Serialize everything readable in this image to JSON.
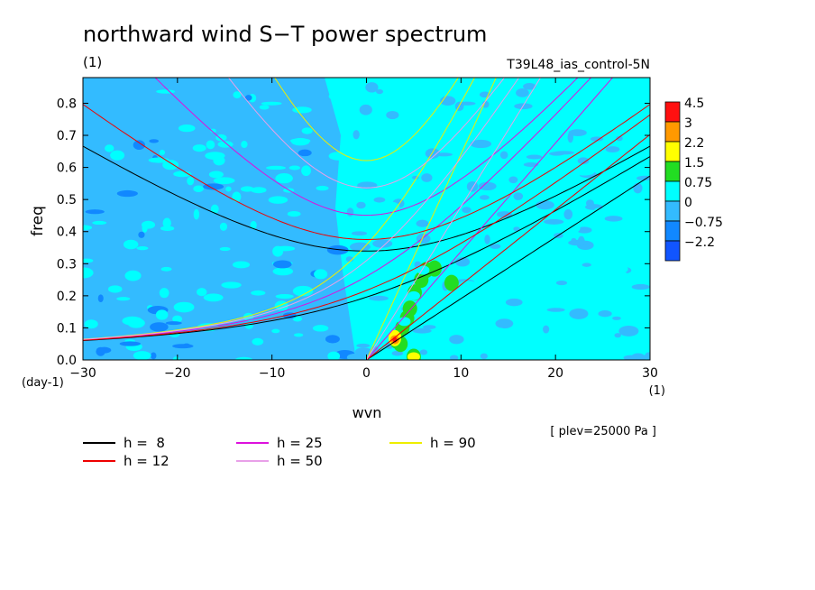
{
  "chart_data": {
    "type": "heatmap",
    "title": "northward wind S−T power spectrum",
    "subtitle_left": "(1)",
    "subtitle_right": "T39L48_ias_control-5N",
    "xlabel": "wvn",
    "x_unit": "(1)",
    "ylabel": "freq",
    "y_unit": "(day-1)",
    "xlim": [
      -30,
      30
    ],
    "ylim": [
      0,
      0.88
    ],
    "x_ticks": [
      -30,
      -20,
      -10,
      0,
      10,
      20,
      30
    ],
    "y_ticks": [
      0.0,
      0.1,
      0.2,
      0.3,
      0.4,
      0.5,
      0.6,
      0.7,
      0.8
    ],
    "annotation": "[ plev=25000 Pa ]",
    "colorbar": {
      "labels": [
        "4.5",
        "3",
        "2.2",
        "1.5",
        "0.75",
        "0",
        "−0.75",
        "−2.2"
      ],
      "colors": [
        "#ff1010",
        "#ff9900",
        "#ffff00",
        "#22dd22",
        "#00ffff",
        "#33bbff",
        "#1188ff",
        "#1155ff"
      ]
    },
    "dispersion_legend": [
      {
        "label": "h =  8",
        "h": 8,
        "color": "#000000"
      },
      {
        "label": "h = 25",
        "h": 25,
        "color": "#dd11dd"
      },
      {
        "label": "h = 90",
        "h": 90,
        "color": "#eeee00"
      },
      {
        "label": "h = 12",
        "h": 12,
        "color": "#ee0000"
      },
      {
        "label": "h = 50",
        "h": 50,
        "color": "#e8a0e8"
      }
    ],
    "background_regions": [
      {
        "level": "-0.75",
        "color": "#33bbff",
        "extent": "wvn -30 to 0, most frequencies"
      },
      {
        "level": "0",
        "color": "#00ffff",
        "extent": "wvn 0 to 30"
      }
    ],
    "feature_points": [
      {
        "wvn": 3,
        "freq": 0.063,
        "level": "4.5"
      },
      {
        "wvn": 3,
        "freq": 0.075,
        "level": "2.2"
      },
      {
        "wvn": 4,
        "freq": 0.12,
        "level": "0.75"
      },
      {
        "wvn": 5,
        "freq": 0.2,
        "level": "0.75"
      },
      {
        "wvn": 6,
        "freq": 0.28,
        "level": "0.75"
      },
      {
        "wvn": 5,
        "freq": 0.01,
        "level": "2.2"
      }
    ]
  }
}
